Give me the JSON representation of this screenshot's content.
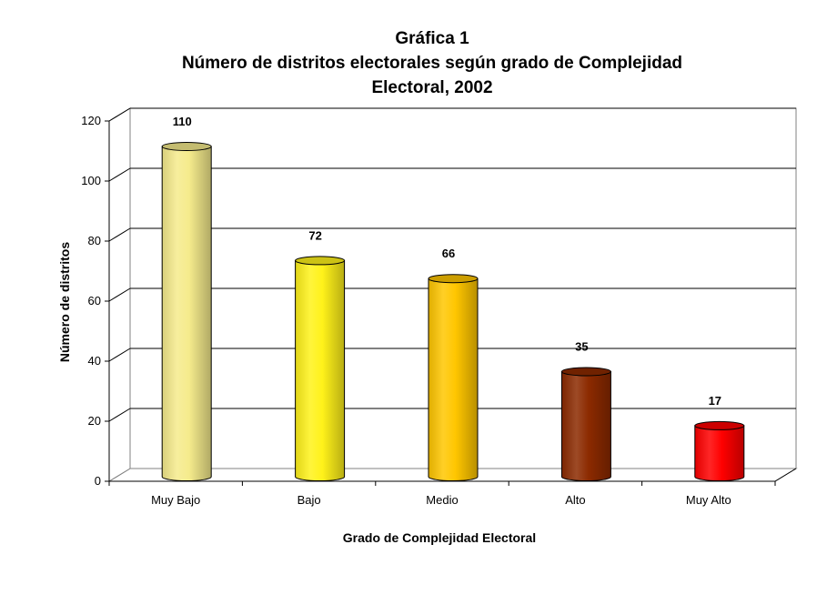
{
  "chart_data": {
    "type": "bar",
    "title": [
      "Gráfica 1",
      "Número de distritos electorales según grado de Complejidad",
      "Electoral, 2002"
    ],
    "xlabel": "Grado de Complejidad Electoral",
    "ylabel": "Número de distritos",
    "categories": [
      "Muy Bajo",
      "Bajo",
      "Medio",
      "Alto",
      "Muy Alto"
    ],
    "values": [
      110,
      72,
      66,
      35,
      17
    ],
    "ylim": [
      0,
      120
    ],
    "yticks": [
      "0",
      "20",
      "40",
      "60",
      "80",
      "100",
      "120"
    ],
    "grid": true,
    "legend": "none",
    "bar_style": "3d-cylinder",
    "colors": [
      "#F5EB8C",
      "#FFF21A",
      "#FFC600",
      "#8C2A00",
      "#FF0000"
    ]
  }
}
